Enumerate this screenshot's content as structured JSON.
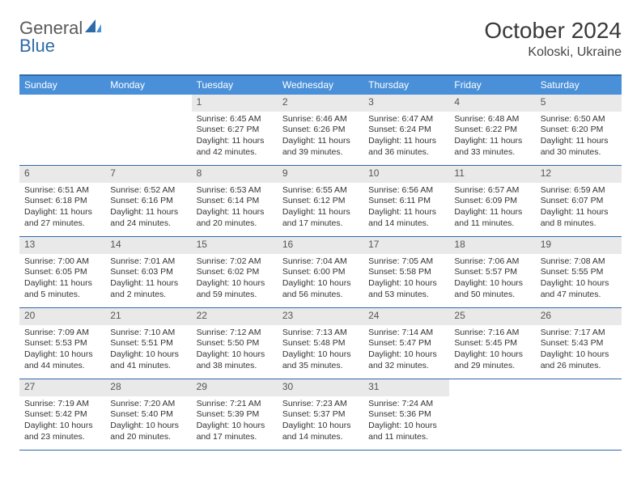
{
  "logo": {
    "word1": "General",
    "word2": "Blue"
  },
  "title": "October 2024",
  "location": "Koloski, Ukraine",
  "colors": {
    "header_bar": "#4a90d9",
    "border": "#2f6aa8",
    "daynum_bg": "#e9e9e9",
    "text": "#333333",
    "logo_gray": "#5a5a5a",
    "logo_blue": "#2f6aa8"
  },
  "days_of_week": [
    "Sunday",
    "Monday",
    "Tuesday",
    "Wednesday",
    "Thursday",
    "Friday",
    "Saturday"
  ],
  "weeks": [
    [
      null,
      null,
      {
        "n": "1",
        "sunrise": "6:45 AM",
        "sunset": "6:27 PM",
        "day_h": "11",
        "day_m": "42"
      },
      {
        "n": "2",
        "sunrise": "6:46 AM",
        "sunset": "6:26 PM",
        "day_h": "11",
        "day_m": "39"
      },
      {
        "n": "3",
        "sunrise": "6:47 AM",
        "sunset": "6:24 PM",
        "day_h": "11",
        "day_m": "36"
      },
      {
        "n": "4",
        "sunrise": "6:48 AM",
        "sunset": "6:22 PM",
        "day_h": "11",
        "day_m": "33"
      },
      {
        "n": "5",
        "sunrise": "6:50 AM",
        "sunset": "6:20 PM",
        "day_h": "11",
        "day_m": "30"
      }
    ],
    [
      {
        "n": "6",
        "sunrise": "6:51 AM",
        "sunset": "6:18 PM",
        "day_h": "11",
        "day_m": "27"
      },
      {
        "n": "7",
        "sunrise": "6:52 AM",
        "sunset": "6:16 PM",
        "day_h": "11",
        "day_m": "24"
      },
      {
        "n": "8",
        "sunrise": "6:53 AM",
        "sunset": "6:14 PM",
        "day_h": "11",
        "day_m": "20"
      },
      {
        "n": "9",
        "sunrise": "6:55 AM",
        "sunset": "6:12 PM",
        "day_h": "11",
        "day_m": "17"
      },
      {
        "n": "10",
        "sunrise": "6:56 AM",
        "sunset": "6:11 PM",
        "day_h": "11",
        "day_m": "14"
      },
      {
        "n": "11",
        "sunrise": "6:57 AM",
        "sunset": "6:09 PM",
        "day_h": "11",
        "day_m": "11"
      },
      {
        "n": "12",
        "sunrise": "6:59 AM",
        "sunset": "6:07 PM",
        "day_h": "11",
        "day_m": "8"
      }
    ],
    [
      {
        "n": "13",
        "sunrise": "7:00 AM",
        "sunset": "6:05 PM",
        "day_h": "11",
        "day_m": "5"
      },
      {
        "n": "14",
        "sunrise": "7:01 AM",
        "sunset": "6:03 PM",
        "day_h": "11",
        "day_m": "2"
      },
      {
        "n": "15",
        "sunrise": "7:02 AM",
        "sunset": "6:02 PM",
        "day_h": "10",
        "day_m": "59"
      },
      {
        "n": "16",
        "sunrise": "7:04 AM",
        "sunset": "6:00 PM",
        "day_h": "10",
        "day_m": "56"
      },
      {
        "n": "17",
        "sunrise": "7:05 AM",
        "sunset": "5:58 PM",
        "day_h": "10",
        "day_m": "53"
      },
      {
        "n": "18",
        "sunrise": "7:06 AM",
        "sunset": "5:57 PM",
        "day_h": "10",
        "day_m": "50"
      },
      {
        "n": "19",
        "sunrise": "7:08 AM",
        "sunset": "5:55 PM",
        "day_h": "10",
        "day_m": "47"
      }
    ],
    [
      {
        "n": "20",
        "sunrise": "7:09 AM",
        "sunset": "5:53 PM",
        "day_h": "10",
        "day_m": "44"
      },
      {
        "n": "21",
        "sunrise": "7:10 AM",
        "sunset": "5:51 PM",
        "day_h": "10",
        "day_m": "41"
      },
      {
        "n": "22",
        "sunrise": "7:12 AM",
        "sunset": "5:50 PM",
        "day_h": "10",
        "day_m": "38"
      },
      {
        "n": "23",
        "sunrise": "7:13 AM",
        "sunset": "5:48 PM",
        "day_h": "10",
        "day_m": "35"
      },
      {
        "n": "24",
        "sunrise": "7:14 AM",
        "sunset": "5:47 PM",
        "day_h": "10",
        "day_m": "32"
      },
      {
        "n": "25",
        "sunrise": "7:16 AM",
        "sunset": "5:45 PM",
        "day_h": "10",
        "day_m": "29"
      },
      {
        "n": "26",
        "sunrise": "7:17 AM",
        "sunset": "5:43 PM",
        "day_h": "10",
        "day_m": "26"
      }
    ],
    [
      {
        "n": "27",
        "sunrise": "7:19 AM",
        "sunset": "5:42 PM",
        "day_h": "10",
        "day_m": "23"
      },
      {
        "n": "28",
        "sunrise": "7:20 AM",
        "sunset": "5:40 PM",
        "day_h": "10",
        "day_m": "20"
      },
      {
        "n": "29",
        "sunrise": "7:21 AM",
        "sunset": "5:39 PM",
        "day_h": "10",
        "day_m": "17"
      },
      {
        "n": "30",
        "sunrise": "7:23 AM",
        "sunset": "5:37 PM",
        "day_h": "10",
        "day_m": "14"
      },
      {
        "n": "31",
        "sunrise": "7:24 AM",
        "sunset": "5:36 PM",
        "day_h": "10",
        "day_m": "11"
      },
      null,
      null
    ]
  ]
}
